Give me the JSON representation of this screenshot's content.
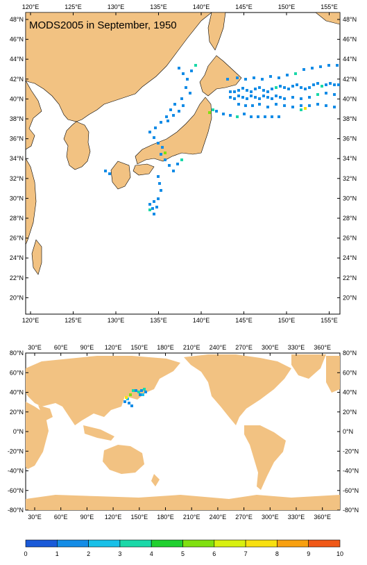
{
  "map_top": {
    "title": "MODS2005 in September, 1950",
    "lon_labels": [
      "120°E",
      "125°E",
      "130°E",
      "135°E",
      "140°E",
      "145°E",
      "150°E",
      "155°E"
    ],
    "lat_labels": [
      "48°N",
      "46°N",
      "44°N",
      "42°N",
      "40°N",
      "38°N",
      "36°N",
      "34°N",
      "32°N",
      "30°N",
      "28°N",
      "26°N",
      "24°N",
      "22°N",
      "20°N"
    ],
    "extent": {
      "lon": [
        119.5,
        157.5
      ],
      "lat": [
        18.5,
        49.5
      ]
    },
    "land_color": "#f2c282"
  },
  "map_bottom": {
    "lon_labels": [
      "30°E",
      "60°E",
      "90°E",
      "120°E",
      "150°E",
      "180°E",
      "210°E",
      "240°E",
      "270°E",
      "300°E",
      "330°E",
      "360°E"
    ],
    "lat_labels": [
      "80°N",
      "60°N",
      "40°N",
      "20°N",
      "0°N",
      "-20°N",
      "-40°N",
      "-60°N",
      "-80°N"
    ],
    "extent": {
      "lon": [
        20,
        380
      ],
      "lat": [
        -80,
        80
      ]
    },
    "land_color": "#f2c282"
  },
  "colorbar": {
    "labels": [
      "0",
      "1",
      "2",
      "3",
      "4",
      "5",
      "6",
      "7",
      "8",
      "9",
      "10"
    ],
    "colors": [
      "#1a5ad8",
      "#148ce6",
      "#19c0e8",
      "#1ad8a8",
      "#20d030",
      "#80e010",
      "#d8f010",
      "#f8e010",
      "#f8a010",
      "#f05818"
    ]
  }
}
